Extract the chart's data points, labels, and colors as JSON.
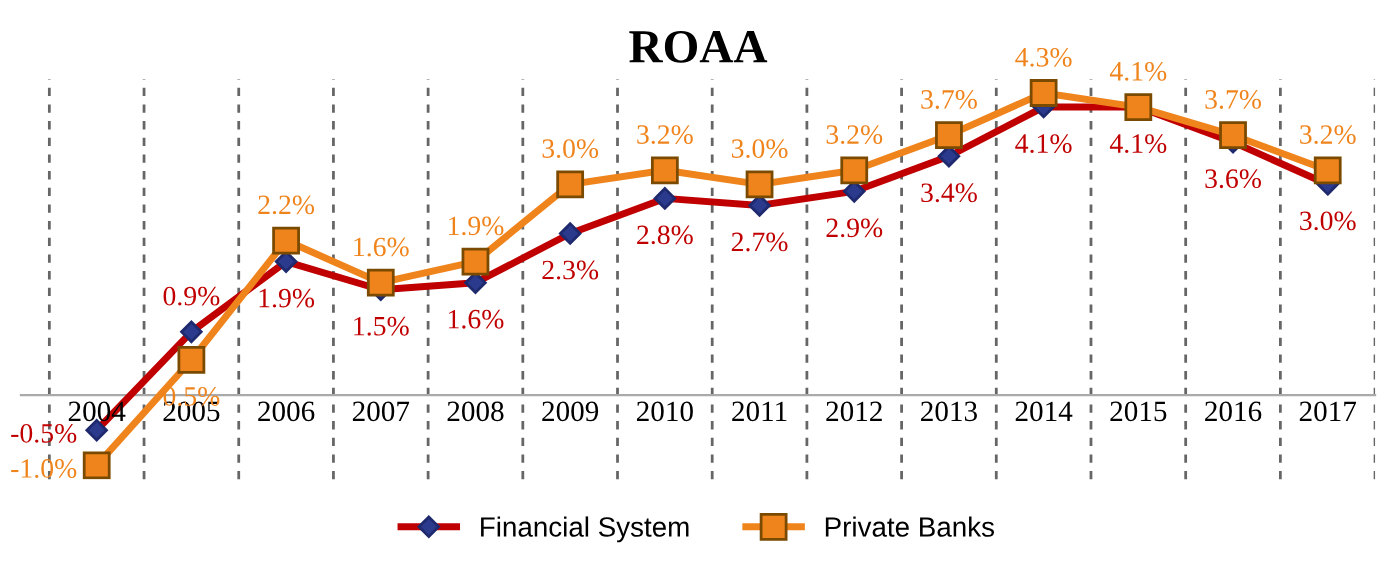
{
  "chart_data": {
    "type": "line",
    "title": "ROAA",
    "categories": [
      "2004",
      "2005",
      "2006",
      "2007",
      "2008",
      "2009",
      "2010",
      "2011",
      "2012",
      "2013",
      "2014",
      "2015",
      "2016",
      "2017"
    ],
    "series": [
      {
        "name": "Financial System",
        "color": "#c00000",
        "marker": "diamond",
        "values": [
          -0.5,
          0.9,
          1.9,
          1.5,
          1.6,
          2.3,
          2.8,
          2.7,
          2.9,
          3.4,
          4.1,
          4.1,
          3.6,
          3.0
        ],
        "value_labels": [
          "-0.5%",
          "0.9%",
          "1.9%",
          "1.5%",
          "1.6%",
          "2.3%",
          "2.8%",
          "2.7%",
          "2.9%",
          "3.4%",
          "4.1%",
          "4.1%",
          "3.6%",
          "3.0%"
        ]
      },
      {
        "name": "Private Banks",
        "color": "#f0841c",
        "marker": "square",
        "values": [
          -1.0,
          0.5,
          2.2,
          1.6,
          1.9,
          3.0,
          3.2,
          3.0,
          3.2,
          3.7,
          4.3,
          4.1,
          3.7,
          3.2
        ],
        "value_labels": [
          "-1.0%",
          "0.5%",
          "2.2%",
          "1.6%",
          "1.9%",
          "3.0%",
          "3.2%",
          "3.0%",
          "3.2%",
          "3.7%",
          "4.3%",
          "4.1%",
          "3.7%",
          "3.2%"
        ]
      }
    ],
    "ylim": [
      -1.2,
      4.5
    ],
    "grid": "x",
    "legend": "bottom",
    "line_style": "solid"
  }
}
